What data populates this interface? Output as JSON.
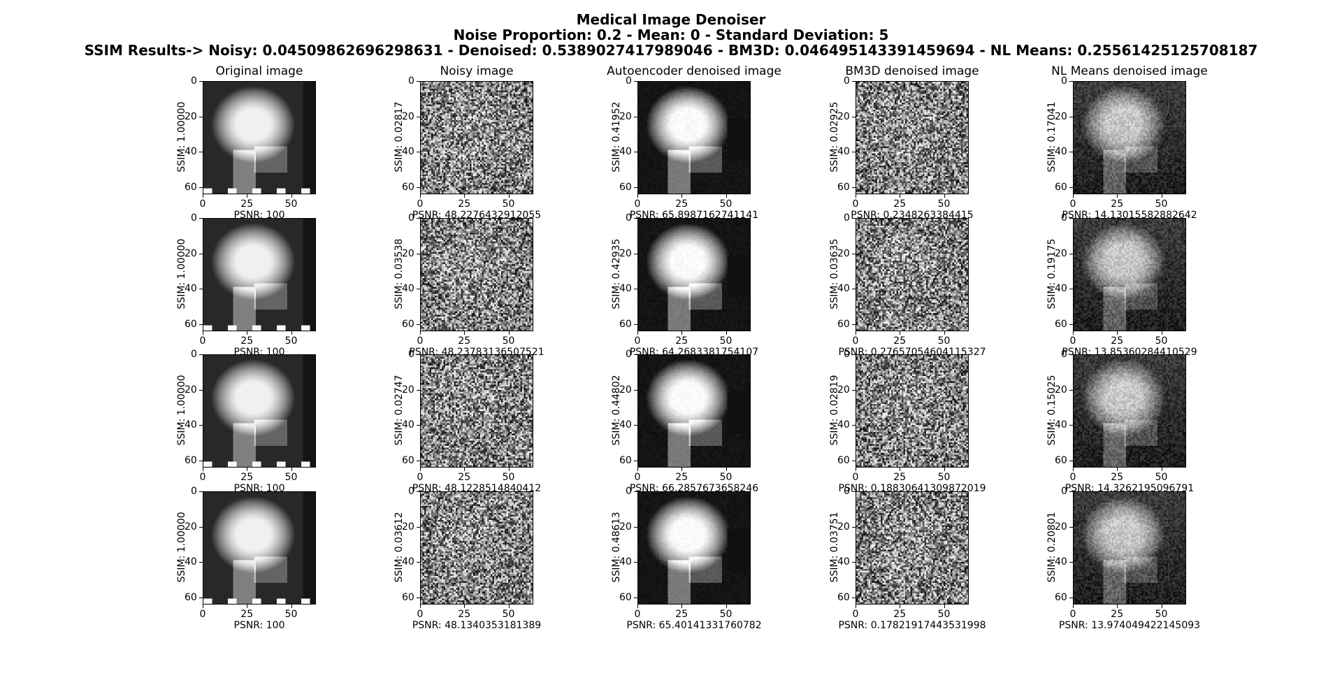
{
  "figure": {
    "title_line1": "Medical Image Denoiser",
    "title_line2": "Noise Proportion: 0.2 - Mean: 0 - Standard Deviation: 5",
    "title_line3": "SSIM Results-> Noisy: 0.04509862696298631 - Denoised: 0.5389027417989046 - BM3D: 0.046495143391459694 - NL Means: 0.25561425125708187"
  },
  "columns": [
    {
      "key": "original",
      "title": "Original image"
    },
    {
      "key": "noisy",
      "title": "Noisy image"
    },
    {
      "key": "autoencoder",
      "title": "Autoencoder denoised image"
    },
    {
      "key": "bm3d",
      "title": "BM3D denoised image"
    },
    {
      "key": "nlmeans",
      "title": "NL Means denoised image"
    }
  ],
  "axes": {
    "x_ticks": [
      "0",
      "25",
      "50"
    ],
    "y_ticks": [
      "0",
      "20",
      "40",
      "60"
    ],
    "xlim": [
      0,
      64
    ],
    "ylim": [
      64,
      0
    ]
  },
  "rows": [
    {
      "ssim": [
        "SSIM: 1.00000",
        "SSIM: 0.02817",
        "SSIM: 0.41952",
        "SSIM: 0.02925",
        "SSIM: 0.17041"
      ],
      "psnr": [
        "PSNR: 100",
        "PSNR: 48.2276432912055",
        "PSNR: 65.8987162741141",
        "PSNR: 0.2348263384415",
        "PSNR: 14.13015582882642"
      ]
    },
    {
      "ssim": [
        "SSIM: 1.00000",
        "SSIM: 0.03538",
        "SSIM: 0.42935",
        "SSIM: 0.03635",
        "SSIM: 0.19175"
      ],
      "psnr": [
        "PSNR: 100",
        "PSNR: 48.23783136507521",
        "PSNR: 64.2683381754107",
        "PSNR: 0.27657054604115327",
        "PSNR: 13.85360284410529"
      ]
    },
    {
      "ssim": [
        "SSIM: 1.00000",
        "SSIM: 0.02747",
        "SSIM: 0.44802",
        "SSIM: 0.02819",
        "SSIM: 0.15025"
      ],
      "psnr": [
        "PSNR: 100",
        "PSNR: 48.1228514840412",
        "PSNR: 66.2857673658246",
        "PSNR: 0.18830641309872019",
        "PSNR: 14.3262195096791"
      ]
    },
    {
      "ssim": [
        "SSIM: 1.00000",
        "SSIM: 0.03612",
        "SSIM: 0.48613",
        "SSIM: 0.03751",
        "SSIM: 0.20801"
      ],
      "psnr": [
        "PSNR: 100",
        "PSNR: 48.1340353181389",
        "PSNR: 65.40141331760782",
        "PSNR: 0.17821917443531998",
        "PSNR: 13.974049422145093"
      ]
    }
  ]
}
